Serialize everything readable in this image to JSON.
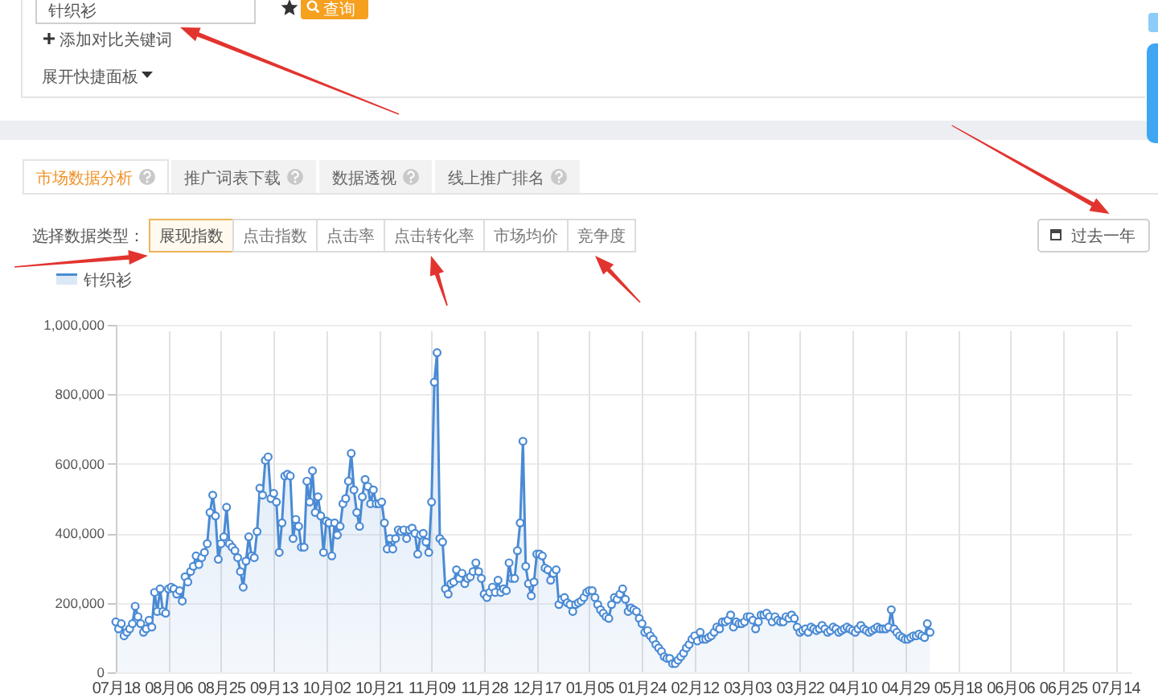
{
  "chart_data": [
    {
      "type": "other",
      "annotations": [
        "针织衫",
        "查询",
        "添加对比关键词",
        "展开快捷面板"
      ]
    },
    {
      "type": "area",
      "annotations": [
        "市场数据分析",
        "推广词表下载",
        "数据透视",
        "线上推广排名",
        "选择数据类型：",
        "展现指数",
        "点击指数",
        "点击率",
        "点击转化率",
        "市场均价",
        "竞争度",
        "过去一年"
      ],
      "categories": [
        "07月18",
        null,
        null,
        null,
        null,
        null,
        null,
        null,
        null,
        null,
        null,
        null,
        null,
        null,
        null,
        null,
        null,
        null,
        null,
        "08月06",
        null,
        null,
        null,
        null,
        null,
        null,
        null,
        null,
        null,
        null,
        null,
        null,
        null,
        null,
        null,
        null,
        null,
        null,
        "08月25",
        null,
        null,
        null,
        null,
        null,
        null,
        null,
        null,
        null,
        null,
        null,
        null,
        null,
        null,
        null,
        null,
        null,
        null,
        "09月13",
        null,
        null,
        null,
        null,
        null,
        null,
        null,
        null,
        null,
        null,
        null,
        null,
        null,
        null,
        null,
        null,
        null,
        null,
        "10月02",
        null,
        null,
        null,
        null,
        null,
        null,
        null,
        null,
        null,
        null,
        null,
        null,
        null,
        null,
        null,
        null,
        null,
        null,
        "10月21",
        null,
        null,
        null,
        null,
        null,
        null,
        null,
        null,
        null,
        null,
        null,
        null,
        null,
        null,
        null,
        null,
        null,
        null,
        "11月09",
        null,
        null,
        null,
        null,
        null,
        null,
        null,
        null,
        null,
        null,
        null,
        null,
        null,
        null,
        null,
        null,
        null,
        null,
        "11月28",
        null,
        null,
        null,
        null,
        null,
        null,
        null,
        null,
        null,
        null,
        null,
        null,
        null,
        null,
        null,
        null,
        null,
        null,
        "12月17",
        null,
        null,
        null,
        null,
        null,
        null,
        null,
        null,
        null,
        null,
        null,
        null,
        null,
        null,
        null,
        null,
        null,
        null,
        "01月05",
        null,
        null,
        null,
        null,
        null,
        null,
        null,
        null,
        null,
        null,
        null,
        null,
        null,
        null,
        null,
        null,
        null,
        null,
        "01月24",
        null,
        null,
        null,
        null,
        null,
        null,
        null,
        null,
        null,
        null,
        null,
        null,
        null,
        null,
        null,
        null,
        null,
        null,
        "02月12",
        null,
        null,
        null,
        null,
        null,
        null,
        null,
        null,
        null,
        null,
        null,
        null,
        null,
        null,
        null,
        null,
        null,
        null,
        "03月03",
        null,
        null,
        null,
        null,
        null,
        null,
        null,
        null,
        null,
        null,
        null,
        null,
        null,
        null,
        null,
        null,
        null,
        null,
        "03月22",
        null,
        null,
        null,
        null,
        null,
        null,
        null,
        null,
        null,
        null,
        null,
        null,
        null,
        null,
        null,
        null,
        null,
        null,
        "04月10",
        null,
        null,
        null,
        null,
        null,
        null,
        null,
        null,
        null,
        null,
        null,
        null,
        null,
        null,
        null,
        null,
        null,
        null,
        "04月29",
        null,
        null,
        null,
        null,
        null,
        null,
        null,
        null,
        null,
        null,
        null,
        null,
        null,
        null,
        null,
        null,
        null,
        null,
        "05月18",
        null,
        null,
        null,
        null,
        null,
        null,
        null,
        null,
        null,
        null,
        null,
        null,
        null,
        null,
        null,
        null,
        null,
        null,
        "06月06",
        null,
        null,
        null,
        null,
        null,
        null,
        null,
        null,
        null,
        null,
        null,
        null,
        null,
        null,
        null,
        null,
        null,
        null,
        "06月25",
        null,
        null,
        null,
        null,
        null,
        null,
        null,
        null,
        null,
        null,
        null,
        null,
        null,
        null,
        null,
        null,
        null,
        null,
        "07月14",
        null,
        null,
        null,
        null,
        null,
        null
      ],
      "series": [
        {
          "name": "针织衫",
          "color": "#4a8ad4",
          "values": [
            145000,
            125000,
            140000,
            105000,
            115000,
            125000,
            140000,
            190000,
            160000,
            140000,
            115000,
            125000,
            150000,
            130000,
            230000,
            175000,
            240000,
            175000,
            170000,
            240000,
            245000,
            240000,
            225000,
            235000,
            205000,
            275000,
            260000,
            290000,
            305000,
            335000,
            310000,
            330000,
            345000,
            370000,
            460000,
            510000,
            450000,
            325000,
            370000,
            390000,
            475000,
            370000,
            360000,
            350000,
            330000,
            290000,
            245000,
            320000,
            390000,
            335000,
            330000,
            405000,
            530000,
            510000,
            610000,
            620000,
            500000,
            515000,
            490000,
            345000,
            430000,
            565000,
            570000,
            565000,
            385000,
            440000,
            420000,
            360000,
            360000,
            550000,
            490000,
            580000,
            460000,
            505000,
            450000,
            345000,
            435000,
            430000,
            335000,
            430000,
            395000,
            420000,
            485000,
            500000,
            550000,
            630000,
            525000,
            460000,
            420000,
            505000,
            555000,
            535000,
            485000,
            525000,
            485000,
            485000,
            490000,
            430000,
            355000,
            385000,
            355000,
            385000,
            410000,
            405000,
            410000,
            385000,
            410000,
            415000,
            400000,
            340000,
            395000,
            400000,
            375000,
            345000,
            490000,
            835000,
            920000,
            385000,
            375000,
            240000,
            225000,
            255000,
            260000,
            295000,
            270000,
            285000,
            255000,
            270000,
            275000,
            290000,
            315000,
            290000,
            270000,
            225000,
            215000,
            230000,
            245000,
            230000,
            265000,
            230000,
            240000,
            235000,
            315000,
            270000,
            270000,
            350000,
            430000,
            665000,
            305000,
            255000,
            220000,
            260000,
            340000,
            340000,
            335000,
            300000,
            295000,
            265000,
            285000,
            295000,
            195000,
            210000,
            215000,
            200000,
            195000,
            175000,
            195000,
            200000,
            205000,
            215000,
            230000,
            235000,
            235000,
            215000,
            195000,
            180000,
            170000,
            160000,
            155000,
            195000,
            215000,
            210000,
            225000,
            240000,
            210000,
            175000,
            185000,
            180000,
            175000,
            155000,
            140000,
            115000,
            120000,
            105000,
            95000,
            80000,
            70000,
            60000,
            45000,
            40000,
            40000,
            25000,
            25000,
            35000,
            45000,
            55000,
            70000,
            80000,
            95000,
            105000,
            90000,
            115000,
            95000,
            95000,
            100000,
            105000,
            115000,
            130000,
            125000,
            145000,
            145000,
            150000,
            165000,
            130000,
            145000,
            140000,
            140000,
            145000,
            160000,
            160000,
            150000,
            125000,
            145000,
            165000,
            165000,
            170000,
            160000,
            145000,
            160000,
            150000,
            145000,
            145000,
            160000,
            155000,
            165000,
            155000,
            130000,
            115000,
            120000,
            125000,
            115000,
            130000,
            125000,
            120000,
            125000,
            135000,
            125000,
            115000,
            120000,
            130000,
            125000,
            115000,
            120000,
            125000,
            130000,
            125000,
            120000,
            115000,
            125000,
            135000,
            125000,
            120000,
            115000,
            120000,
            125000,
            130000,
            125000,
            125000,
            125000,
            130000,
            180000,
            125000,
            115000,
            105000,
            100000,
            95000,
            95000,
            100000,
            105000,
            105000,
            110000,
            105000,
            100000,
            140000,
            115000,
            null,
            null,
            null,
            null,
            null,
            null,
            null,
            null,
            null,
            null,
            null,
            null,
            null,
            null,
            null,
            null,
            null,
            null,
            null,
            null,
            null,
            null,
            null,
            null,
            null,
            null,
            null,
            null,
            null,
            null,
            null,
            null,
            null,
            null,
            null,
            null,
            null,
            null,
            null,
            null,
            null,
            null,
            null,
            null,
            null,
            null,
            null,
            null,
            null,
            null,
            null,
            null,
            null,
            null,
            null,
            null,
            null,
            null,
            null,
            null,
            null,
            null,
            null,
            null,
            null,
            null,
            null,
            null,
            null,
            null,
            null,
            null,
            null
          ]
        }
      ],
      "ylim": [
        0,
        1000000
      ],
      "yticks": [
        0,
        {
          "value": 200000,
          "label": "200,000"
        },
        {
          "value": 400000,
          "label": "400,000"
        },
        {
          "value": 600000,
          "label": "600,000"
        },
        {
          "value": 800000,
          "label": "800,000"
        },
        {
          "value": 1000000,
          "label": "1,000,000"
        }
      ],
      "grid": true,
      "legend": "top left",
      "marker": "circle"
    }
  ]
}
